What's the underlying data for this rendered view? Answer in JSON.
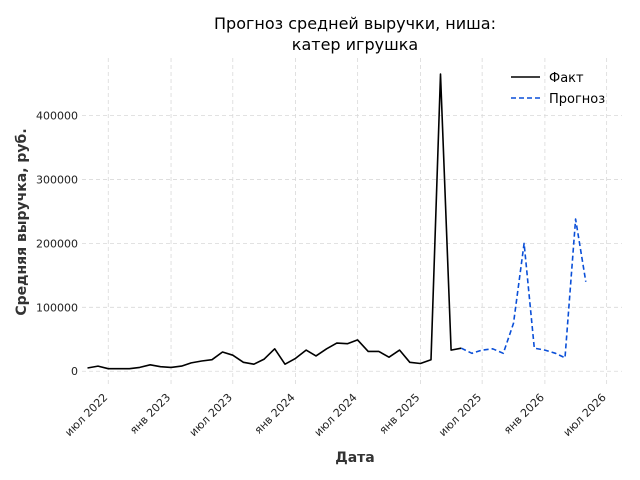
{
  "chart_data": {
    "type": "line",
    "title_lines": [
      "Прогноз средней выручки, ниша:",
      "катер игрушка"
    ],
    "xlabel": "Дата",
    "ylabel": "Средняя выручка, руб.",
    "xlim": [
      "2022-04-15",
      "2026-08-15"
    ],
    "ylim": [
      -20000,
      490000
    ],
    "y_ticks": [
      0,
      100000,
      200000,
      300000,
      400000
    ],
    "x_ticks": [
      {
        "date": "2022-07-01",
        "label": "июл 2022"
      },
      {
        "date": "2023-01-01",
        "label": "янв 2023"
      },
      {
        "date": "2023-07-01",
        "label": "июл 2023"
      },
      {
        "date": "2024-01-01",
        "label": "янв 2024"
      },
      {
        "date": "2024-07-01",
        "label": "июл 2024"
      },
      {
        "date": "2025-01-01",
        "label": "янв 2025"
      },
      {
        "date": "2025-07-01",
        "label": "июл 2025"
      },
      {
        "date": "2026-01-01",
        "label": "янв 2026"
      },
      {
        "date": "2026-07-01",
        "label": "июл 2026"
      }
    ],
    "grid": true,
    "legend_position": "top-right",
    "series": [
      {
        "name": "Факт",
        "color": "#000000",
        "style": "solid",
        "points": [
          {
            "x": "2022-05-01",
            "y": 5000
          },
          {
            "x": "2022-06-01",
            "y": 8000
          },
          {
            "x": "2022-07-01",
            "y": 4000
          },
          {
            "x": "2022-08-01",
            "y": 4000
          },
          {
            "x": "2022-09-01",
            "y": 4000
          },
          {
            "x": "2022-10-01",
            "y": 6000
          },
          {
            "x": "2022-11-01",
            "y": 10000
          },
          {
            "x": "2022-12-01",
            "y": 7000
          },
          {
            "x": "2023-01-01",
            "y": 6000
          },
          {
            "x": "2023-02-01",
            "y": 8000
          },
          {
            "x": "2023-03-01",
            "y": 13000
          },
          {
            "x": "2023-04-01",
            "y": 16000
          },
          {
            "x": "2023-05-01",
            "y": 18000
          },
          {
            "x": "2023-06-01",
            "y": 30000
          },
          {
            "x": "2023-07-01",
            "y": 25000
          },
          {
            "x": "2023-08-01",
            "y": 14000
          },
          {
            "x": "2023-09-01",
            "y": 11000
          },
          {
            "x": "2023-10-01",
            "y": 19000
          },
          {
            "x": "2023-11-01",
            "y": 35000
          },
          {
            "x": "2023-12-01",
            "y": 11000
          },
          {
            "x": "2024-01-01",
            "y": 20000
          },
          {
            "x": "2024-02-01",
            "y": 33000
          },
          {
            "x": "2024-03-01",
            "y": 24000
          },
          {
            "x": "2024-04-01",
            "y": 35000
          },
          {
            "x": "2024-05-01",
            "y": 44000
          },
          {
            "x": "2024-06-01",
            "y": 43000
          },
          {
            "x": "2024-07-01",
            "y": 49000
          },
          {
            "x": "2024-08-01",
            "y": 31000
          },
          {
            "x": "2024-09-01",
            "y": 31000
          },
          {
            "x": "2024-10-01",
            "y": 22000
          },
          {
            "x": "2024-11-01",
            "y": 33000
          },
          {
            "x": "2024-12-01",
            "y": 14000
          },
          {
            "x": "2025-01-01",
            "y": 12000
          },
          {
            "x": "2025-02-01",
            "y": 18000
          },
          {
            "x": "2025-03-01",
            "y": 465000
          },
          {
            "x": "2025-04-01",
            "y": 33000
          },
          {
            "x": "2025-05-01",
            "y": 36000
          }
        ]
      },
      {
        "name": "Прогноз",
        "color": "#0a4fd8",
        "style": "dashed",
        "points": [
          {
            "x": "2025-05-01",
            "y": 36000
          },
          {
            "x": "2025-06-01",
            "y": 28000
          },
          {
            "x": "2025-07-01",
            "y": 33000
          },
          {
            "x": "2025-08-01",
            "y": 35000
          },
          {
            "x": "2025-09-01",
            "y": 28000
          },
          {
            "x": "2025-10-01",
            "y": 75000
          },
          {
            "x": "2025-11-01",
            "y": 200000
          },
          {
            "x": "2025-12-01",
            "y": 36000
          },
          {
            "x": "2026-01-01",
            "y": 33000
          },
          {
            "x": "2026-02-01",
            "y": 28000
          },
          {
            "x": "2026-03-01",
            "y": 21000
          },
          {
            "x": "2026-04-01",
            "y": 238000
          },
          {
            "x": "2026-05-01",
            "y": 140000
          }
        ]
      }
    ]
  }
}
